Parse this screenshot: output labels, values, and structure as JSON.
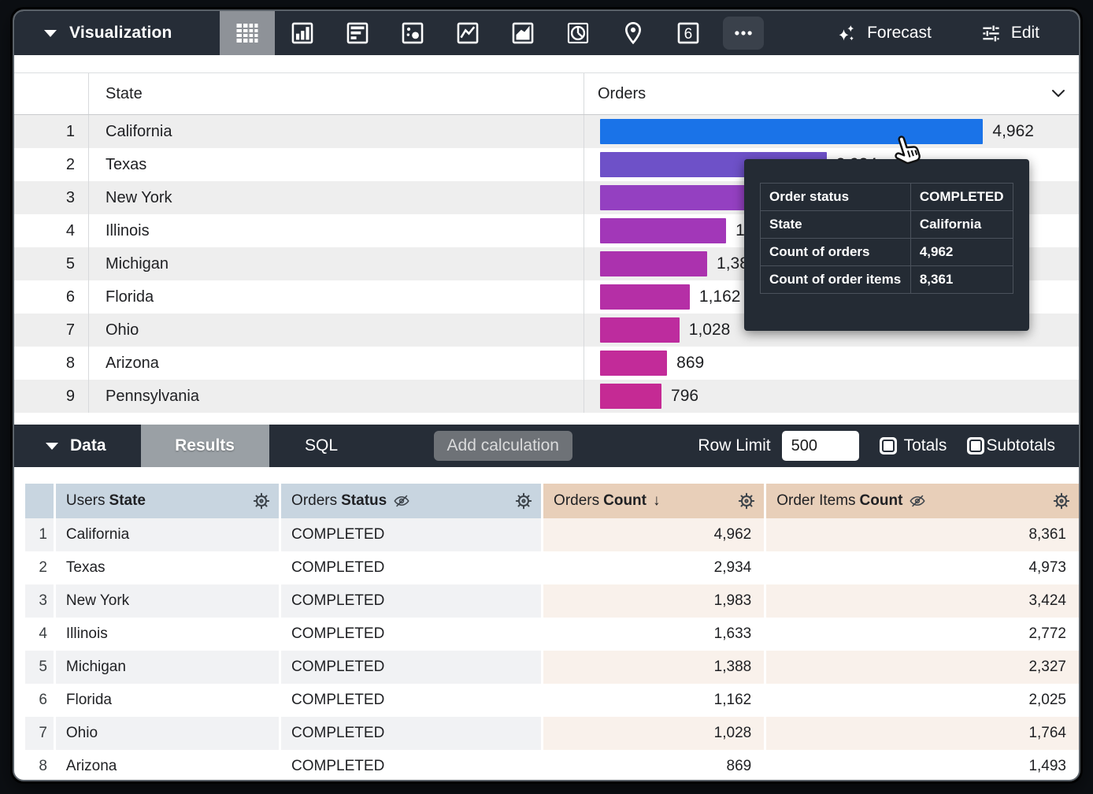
{
  "viz_toolbar": {
    "title": "Visualization",
    "selected_chart_type": "table",
    "icons": [
      "table-chart-icon",
      "column-chart-icon",
      "bar-chart-icon",
      "scatter-chart-icon",
      "line-chart-icon",
      "area-chart-icon",
      "pie-chart-icon",
      "map-chart-icon",
      "single-value-icon",
      "more-options-icon"
    ],
    "single_value_glyph": "6",
    "forecast_label": "Forecast",
    "edit_label": "Edit"
  },
  "viz_table": {
    "columns": {
      "state": "State",
      "orders": "Orders"
    },
    "bar_colors": [
      "#1a73e8",
      "#6e51c8",
      "#9440c1",
      "#a237b8",
      "#ab32ae",
      "#b52fa6",
      "#bd2c9e",
      "#c22b99",
      "#c52a94"
    ],
    "rows": [
      {
        "n": "1",
        "state": "California",
        "value": 4962,
        "label": "4,962",
        "color": "#1a73e8"
      },
      {
        "n": "2",
        "state": "Texas",
        "value": 2934,
        "label": "2,934",
        "color": "#6e51c8"
      },
      {
        "n": "3",
        "state": "New York",
        "value": 1983,
        "label": "1,983",
        "color": "#9440c1"
      },
      {
        "n": "4",
        "state": "Illinois",
        "value": 1633,
        "label": "1,633",
        "color": "#a237b8"
      },
      {
        "n": "5",
        "state": "Michigan",
        "value": 1388,
        "label": "1,388",
        "color": "#ab32ae"
      },
      {
        "n": "6",
        "state": "Florida",
        "value": 1162,
        "label": "1,162",
        "color": "#b52fa6"
      },
      {
        "n": "7",
        "state": "Ohio",
        "value": 1028,
        "label": "1,028",
        "color": "#bd2c9e"
      },
      {
        "n": "8",
        "state": "Arizona",
        "value": 869,
        "label": "869",
        "color": "#c22b99"
      },
      {
        "n": "9",
        "state": "Pennsylvania",
        "value": 796,
        "label": "796",
        "color": "#c52a94"
      }
    ]
  },
  "tooltip": {
    "rows": [
      {
        "label": "Order status",
        "value": "COMPLETED"
      },
      {
        "label": "State",
        "value": "California"
      },
      {
        "label": "Count of orders",
        "value": "4,962"
      },
      {
        "label": "Count of order items",
        "value": "8,361"
      }
    ]
  },
  "data_toolbar": {
    "title": "Data",
    "tabs": {
      "results": "Results",
      "sql": "SQL"
    },
    "add_calculation_label": "Add calculation",
    "row_limit_label": "Row Limit",
    "row_limit_value": "500",
    "totals_label": "Totals",
    "subtotals_label": "Subtotals"
  },
  "data_table": {
    "headers": [
      {
        "prefix": "Users",
        "name": "State",
        "type": "dimension"
      },
      {
        "prefix": "Orders",
        "name": "Status",
        "type": "dimension",
        "hidden_from_viz": true
      },
      {
        "prefix": "Orders",
        "name": "Count",
        "type": "measure",
        "sort": "desc"
      },
      {
        "prefix": "Order Items",
        "name": "Count",
        "type": "measure",
        "hidden_from_viz": true
      }
    ],
    "sort_arrow": "↓",
    "rows": [
      {
        "n": "1",
        "state": "California",
        "status": "COMPLETED",
        "orders_count": "4,962",
        "order_items_count": "8,361"
      },
      {
        "n": "2",
        "state": "Texas",
        "status": "COMPLETED",
        "orders_count": "2,934",
        "order_items_count": "4,973"
      },
      {
        "n": "3",
        "state": "New York",
        "status": "COMPLETED",
        "orders_count": "1,983",
        "order_items_count": "3,424"
      },
      {
        "n": "4",
        "state": "Illinois",
        "status": "COMPLETED",
        "orders_count": "1,633",
        "order_items_count": "2,772"
      },
      {
        "n": "5",
        "state": "Michigan",
        "status": "COMPLETED",
        "orders_count": "1,388",
        "order_items_count": "2,327"
      },
      {
        "n": "6",
        "state": "Florida",
        "status": "COMPLETED",
        "orders_count": "1,162",
        "order_items_count": "2,025"
      },
      {
        "n": "7",
        "state": "Ohio",
        "status": "COMPLETED",
        "orders_count": "1,028",
        "order_items_count": "1,764"
      },
      {
        "n": "8",
        "state": "Arizona",
        "status": "COMPLETED",
        "orders_count": "869",
        "order_items_count": "1,493"
      }
    ]
  },
  "colors": {
    "toolbar_bg": "#262d37",
    "selected_tile_bg": "#8e9298",
    "results_tab_bg": "#9aa0a5",
    "dimension_header_bg": "#c8d5e0",
    "measure_header_bg": "#e8cfb9",
    "tooltip_bg": "#242b34",
    "bar_max_color": "#1a73e8"
  }
}
